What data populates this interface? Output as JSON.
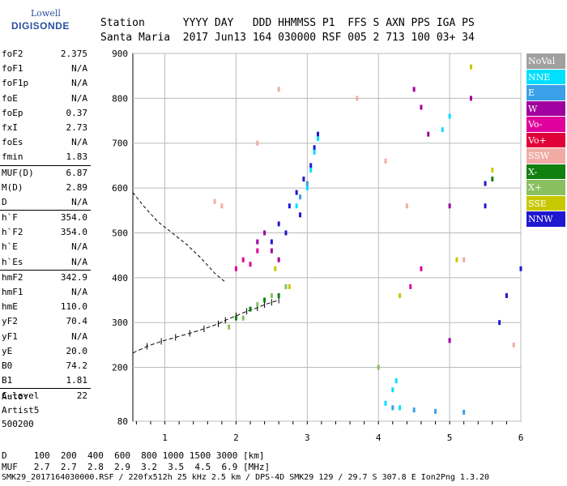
{
  "logo": {
    "line1": "Lowell",
    "line2": "DIGISONDE"
  },
  "header": {
    "labels": "Station      YYYY DAY   DDD HHMMSS P1  FFS S AXN PPS IGA PS",
    "values": "Santa Maria  2017 Jun13 164 030000 RSF 005 2 713 100 03+ 34"
  },
  "params": [
    {
      "name": "foF2",
      "value": "2.375"
    },
    {
      "name": "foF1",
      "value": "N/A"
    },
    {
      "name": "foF1p",
      "value": "N/A"
    },
    {
      "name": "foE",
      "value": "N/A"
    },
    {
      "name": "foEp",
      "value": "0.37"
    },
    {
      "name": "fxI",
      "value": "2.73"
    },
    {
      "name": "foEs",
      "value": "N/A"
    },
    {
      "name": "fmin",
      "value": "1.83",
      "sep": false
    },
    {
      "name": "MUF(D)",
      "value": "6.87",
      "sep": true
    },
    {
      "name": "M(D)",
      "value": "2.89"
    },
    {
      "name": "D",
      "value": "N/A"
    },
    {
      "name": "h`F",
      "value": "354.0",
      "sep": true
    },
    {
      "name": "h`F2",
      "value": "354.0"
    },
    {
      "name": "h`E",
      "value": "N/A"
    },
    {
      "name": "h`Es",
      "value": "N/A"
    },
    {
      "name": "hmF2",
      "value": "342.9",
      "sep": true
    },
    {
      "name": "hmF1",
      "value": "N/A"
    },
    {
      "name": "hmE",
      "value": "110.0"
    },
    {
      "name": "yF2",
      "value": "70.4"
    },
    {
      "name": "yF1",
      "value": "N/A"
    },
    {
      "name": "yE",
      "value": "20.0"
    },
    {
      "name": "B0",
      "value": "74.2"
    },
    {
      "name": "B1",
      "value": "1.81"
    },
    {
      "name": "C-level",
      "value": "22",
      "sep": true
    }
  ],
  "misc": {
    "auto": "Auto:",
    "artist": "Artist5",
    "ver": "500200"
  },
  "legend": [
    {
      "label": "NoVal",
      "color": "#a0a0a0"
    },
    {
      "label": "NNE",
      "color": "#00e0ff"
    },
    {
      "label": "E",
      "color": "#3aa0e8"
    },
    {
      "label": "W",
      "color": "#a000a0"
    },
    {
      "label": "Vo-",
      "color": "#e0009c"
    },
    {
      "label": "Vo+",
      "color": "#e0003a"
    },
    {
      "label": "SSW",
      "color": "#f0aca4"
    },
    {
      "label": "X-",
      "color": "#108010"
    },
    {
      "label": "X+",
      "color": "#88c060"
    },
    {
      "label": "SSE",
      "color": "#c8c800"
    },
    {
      "label": "NNW",
      "color": "#2018d0"
    }
  ],
  "footer": {
    "line1": "D     100  200  400  600  800 1000 1500 3000 [km]",
    "line2": "MUF   2.7  2.7  2.8  2.9  3.2  3.5  4.5  6.9 [MHz]",
    "line3": "SMK29_2017164030000.RSF / 220fx512h 25 kHz 2.5 km / DPS-4D SMK29 129 / 29.7 S 307.8 E Ion2Png 1.3.20"
  },
  "chart_data": {
    "type": "scatter",
    "title": "",
    "xlabel": "",
    "ylabel": "",
    "xlim": [
      0.55,
      6.0
    ],
    "ylim": [
      80,
      900
    ],
    "x_ticks": [
      1,
      2,
      3,
      4,
      5,
      6
    ],
    "y_ticks": [
      80,
      200,
      300,
      400,
      500,
      600,
      700,
      800,
      900
    ],
    "series": [
      {
        "name": "NNW",
        "color": "#2018d0",
        "x": [
          2.6,
          2.75,
          2.85,
          2.95,
          3.05,
          3.1,
          3.15,
          2.5,
          2.7,
          2.9,
          5.5,
          5.5,
          5.8,
          5.7,
          6.0
        ],
        "y": [
          520,
          560,
          590,
          620,
          650,
          690,
          720,
          480,
          500,
          540,
          610,
          560,
          360,
          300,
          420
        ]
      },
      {
        "name": "NNE",
        "color": "#00e0ff",
        "x": [
          3.0,
          3.05,
          3.1,
          3.15,
          2.85,
          4.1,
          4.2,
          4.25,
          4.3,
          4.9,
          5.0
        ],
        "y": [
          600,
          640,
          680,
          710,
          560,
          120,
          150,
          170,
          110,
          730,
          760
        ]
      },
      {
        "name": "W",
        "color": "#a000a0",
        "x": [
          2.3,
          2.4,
          2.5,
          2.6,
          4.5,
          4.6,
          4.7,
          5.0,
          5.3,
          5.0
        ],
        "y": [
          480,
          500,
          460,
          440,
          820,
          780,
          720,
          260,
          800,
          560
        ]
      },
      {
        "name": "Vo-",
        "color": "#e0009c",
        "x": [
          2.0,
          2.1,
          2.2,
          2.3,
          4.45,
          4.6
        ],
        "y": [
          420,
          440,
          430,
          460,
          380,
          420
        ]
      },
      {
        "name": "SSW",
        "color": "#f0aca4",
        "x": [
          1.7,
          1.8,
          2.3,
          2.6,
          3.7,
          4.1,
          4.4,
          5.2,
          5.9
        ],
        "y": [
          570,
          560,
          700,
          820,
          800,
          660,
          560,
          440,
          250
        ]
      },
      {
        "name": "X-",
        "color": "#108010",
        "x": [
          2.0,
          2.2,
          2.4,
          2.6,
          5.6
        ],
        "y": [
          310,
          330,
          350,
          360,
          620
        ]
      },
      {
        "name": "X+",
        "color": "#88c060",
        "x": [
          1.9,
          2.1,
          2.3,
          2.5,
          2.7,
          4.0
        ],
        "y": [
          290,
          310,
          340,
          360,
          380,
          200
        ]
      },
      {
        "name": "SSE",
        "color": "#c8c800",
        "x": [
          2.55,
          2.75,
          4.3,
          5.1,
          5.3,
          5.6
        ],
        "y": [
          420,
          380,
          360,
          440,
          870,
          640
        ]
      },
      {
        "name": "E",
        "color": "#3aa0e8",
        "x": [
          2.9,
          3.0,
          4.2,
          4.5,
          4.8,
          5.2
        ],
        "y": [
          580,
          610,
          110,
          105,
          102,
          100
        ]
      }
    ],
    "trace": {
      "x": [
        0.55,
        0.75,
        0.95,
        1.15,
        1.35,
        1.55,
        1.75,
        1.85,
        2.0,
        2.15,
        2.3,
        2.4,
        2.5,
        2.6
      ],
      "y": [
        232,
        247,
        258,
        267,
        276,
        286,
        297,
        305,
        315,
        325,
        333,
        340,
        345,
        350
      ]
    },
    "profile": {
      "x": [
        0.55,
        0.7,
        0.9,
        1.1,
        1.3,
        1.5,
        1.7,
        1.85
      ],
      "y": [
        590,
        560,
        525,
        500,
        475,
        445,
        410,
        390
      ]
    }
  }
}
